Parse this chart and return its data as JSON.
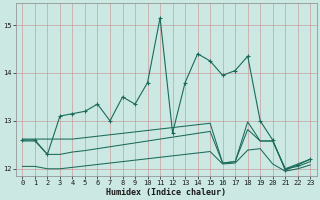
{
  "xlabel": "Humidex (Indice chaleur)",
  "bg_color": "#cce8e2",
  "line_color": "#1a6b5a",
  "grid_color_v": "#c8a0a0",
  "grid_color_h": "#c8a0a0",
  "x": [
    0,
    1,
    2,
    3,
    4,
    5,
    6,
    7,
    8,
    9,
    10,
    11,
    12,
    13,
    14,
    15,
    16,
    17,
    18,
    19,
    20,
    21,
    22,
    23
  ],
  "y_main": [
    12.6,
    12.6,
    12.3,
    13.1,
    13.15,
    13.2,
    13.35,
    13.0,
    13.5,
    13.35,
    13.8,
    15.15,
    12.75,
    13.8,
    14.4,
    14.25,
    13.95,
    14.05,
    14.35,
    13.0,
    12.6,
    11.97,
    12.08,
    12.2
  ],
  "y_line2": [
    12.62,
    12.62,
    12.62,
    12.62,
    12.62,
    12.65,
    12.68,
    12.71,
    12.74,
    12.77,
    12.8,
    12.83,
    12.86,
    12.89,
    12.92,
    12.95,
    12.12,
    12.15,
    12.98,
    12.58,
    12.58,
    12.0,
    12.1,
    12.2
  ],
  "y_line3": [
    12.58,
    12.58,
    12.3,
    12.3,
    12.35,
    12.38,
    12.42,
    12.46,
    12.5,
    12.54,
    12.58,
    12.62,
    12.66,
    12.7,
    12.74,
    12.78,
    12.12,
    12.15,
    12.82,
    12.58,
    12.58,
    12.0,
    12.05,
    12.15
  ],
  "y_line4": [
    12.05,
    12.05,
    12.0,
    12.0,
    12.03,
    12.06,
    12.09,
    12.12,
    12.15,
    12.18,
    12.21,
    12.24,
    12.27,
    12.3,
    12.33,
    12.36,
    12.1,
    12.12,
    12.39,
    12.42,
    12.1,
    11.95,
    12.0,
    12.08
  ],
  "ylim": [
    11.85,
    15.45
  ],
  "xlim": [
    -0.5,
    23.5
  ],
  "yticks": [
    12,
    13,
    14,
    15
  ],
  "xticks": [
    0,
    1,
    2,
    3,
    4,
    5,
    6,
    7,
    8,
    9,
    10,
    11,
    12,
    13,
    14,
    15,
    16,
    17,
    18,
    19,
    20,
    21,
    22,
    23
  ],
  "tick_fontsize": 5.0,
  "xlabel_fontsize": 6.0
}
